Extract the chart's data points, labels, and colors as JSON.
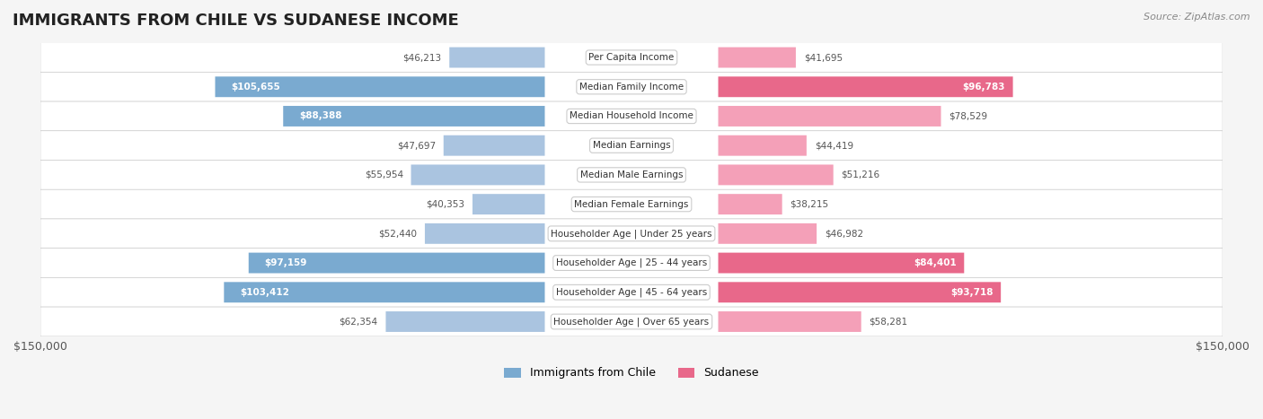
{
  "title": "IMMIGRANTS FROM CHILE VS SUDANESE INCOME",
  "source": "Source: ZipAtlas.com",
  "categories": [
    "Per Capita Income",
    "Median Family Income",
    "Median Household Income",
    "Median Earnings",
    "Median Male Earnings",
    "Median Female Earnings",
    "Householder Age | Under 25 years",
    "Householder Age | 25 - 44 years",
    "Householder Age | 45 - 64 years",
    "Householder Age | Over 65 years"
  ],
  "chile_values": [
    46213,
    105655,
    88388,
    47697,
    55954,
    40353,
    52440,
    97159,
    103412,
    62354
  ],
  "sudanese_values": [
    41695,
    96783,
    78529,
    44419,
    51216,
    38215,
    46982,
    84401,
    93718,
    58281
  ],
  "chile_color": "#aac4e0",
  "chile_color_dark": "#7aaad0",
  "sudanese_color": "#f4a0b8",
  "sudanese_color_dark": "#e8688a",
  "max_value": 150000,
  "bg_color": "#f5f5f5",
  "row_bg_color": "#efefef",
  "legend_chile": "Immigrants from Chile",
  "legend_sudanese": "Sudanese",
  "chile_label_threshold": 80000,
  "sudanese_label_threshold": 80000
}
